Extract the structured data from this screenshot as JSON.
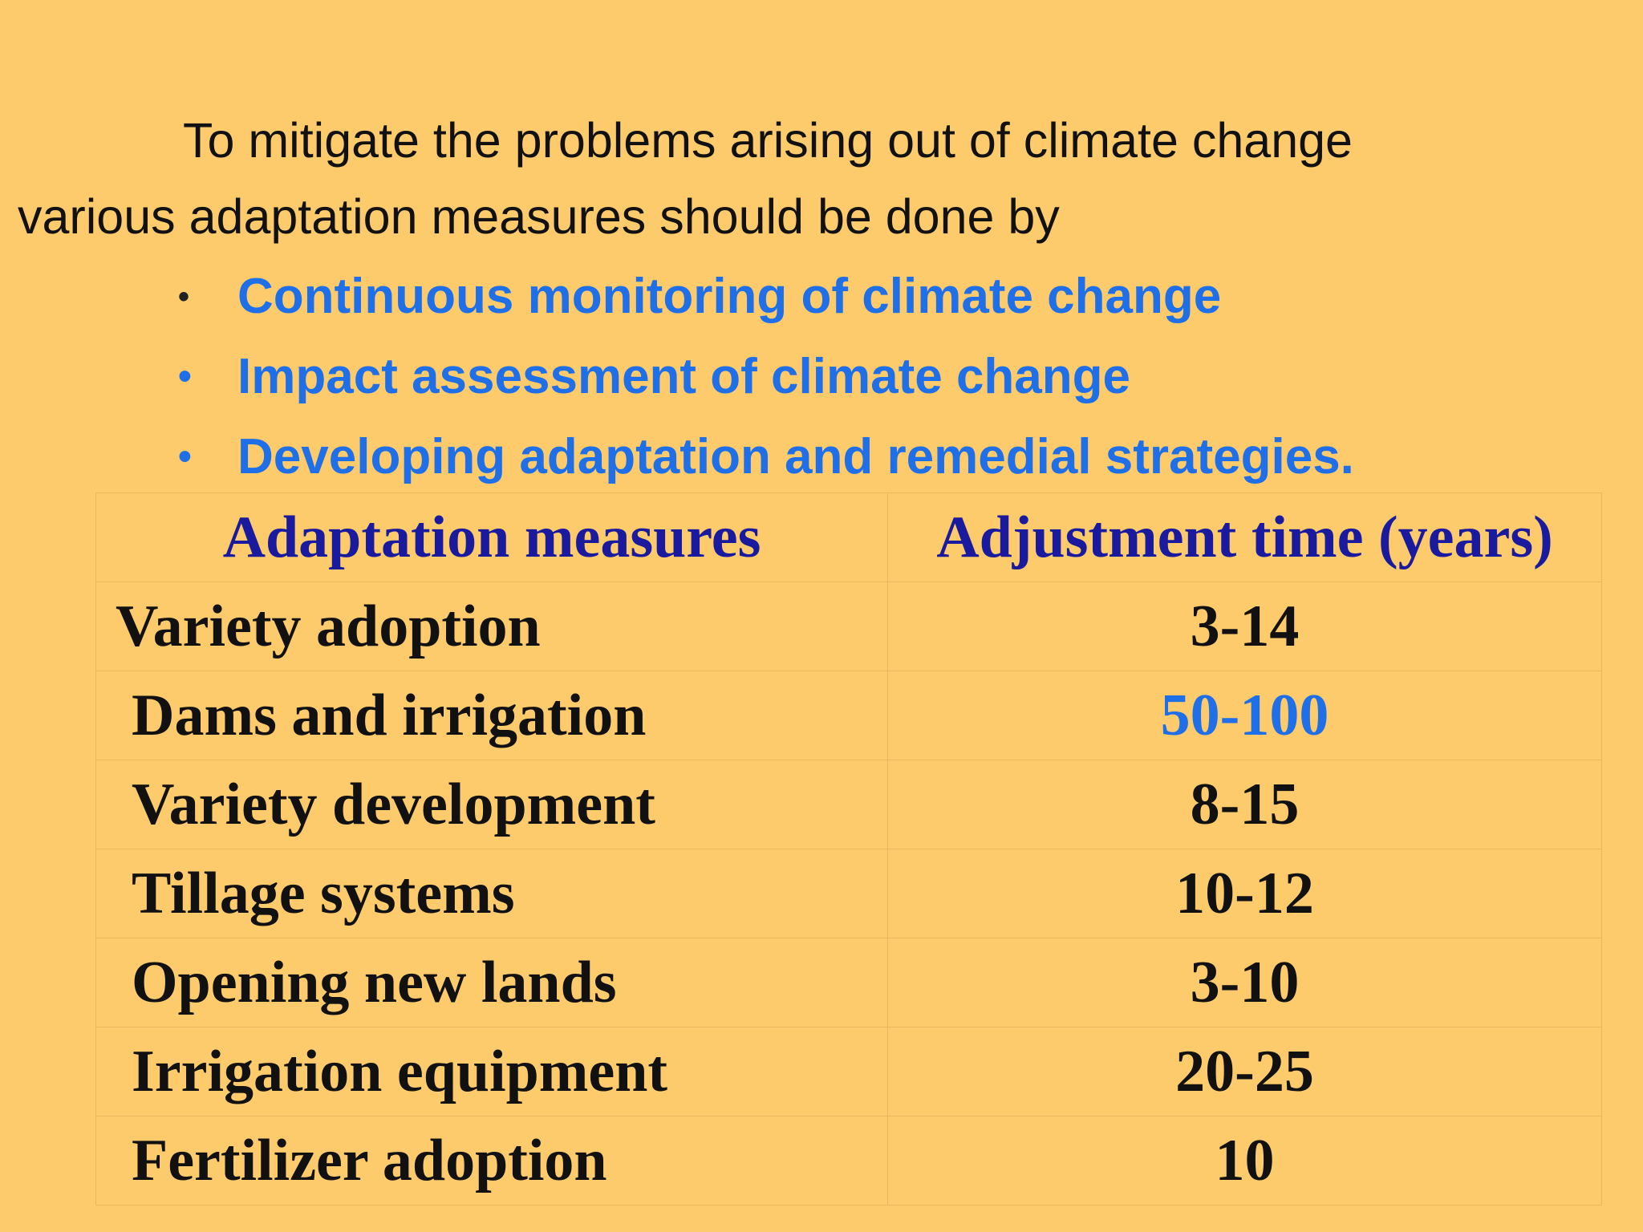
{
  "intro": {
    "line1": "To mitigate the problems arising out of climate change",
    "line2": "various adaptation measures should be done by"
  },
  "bullets": [
    "Continuous monitoring of climate change",
    "Impact assessment of climate change",
    "Developing adaptation and remedial strategies."
  ],
  "bullet_glyph": "•",
  "table": {
    "headers": [
      "Adaptation measures",
      "Adjustment time (years)"
    ],
    "rows": [
      {
        "measure": "Variety adoption",
        "time": "3-14"
      },
      {
        "measure": "Dams and irrigation",
        "time": "50-100"
      },
      {
        "measure": "Variety development",
        "time": "8-15"
      },
      {
        "measure": "Tillage systems",
        "time": "10-12"
      },
      {
        "measure": "Opening new lands",
        "time": "3-10"
      },
      {
        "measure": "Irrigation equipment",
        "time": "20-25"
      },
      {
        "measure": "Fertilizer adoption",
        "time": "10"
      }
    ]
  },
  "colors": {
    "background": "#FDCB6B",
    "bullet_text": "#1E6FE8",
    "header_text": "#1A1A9E",
    "highlight_value": "#1E6FE8"
  }
}
